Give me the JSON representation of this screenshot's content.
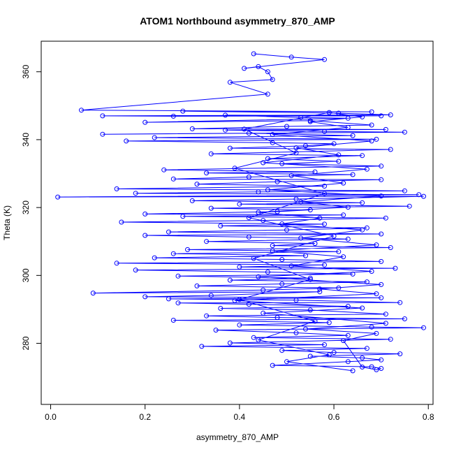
{
  "chart_data": {
    "type": "line",
    "title": "ATOM1 Northbound asymmetry_870_AMP",
    "xlabel": "asymmetry_870_AMP",
    "ylabel": "Theta (K)",
    "xlim": [
      -0.02,
      0.81
    ],
    "ylim": [
      262,
      369
    ],
    "xticks": [
      "0.0",
      "0.2",
      "0.4",
      "0.6",
      "0.8"
    ],
    "yticks": [
      "280",
      "300",
      "320",
      "340",
      "360"
    ],
    "grid": false,
    "series": [
      {
        "color": "#0000ff",
        "marker": "open-circle",
        "points": [
          [
            0.43,
            365.3
          ],
          [
            0.51,
            364.3
          ],
          [
            0.58,
            363.6
          ],
          [
            0.41,
            361.0
          ],
          [
            0.44,
            361.5
          ],
          [
            0.46,
            360.0
          ],
          [
            0.47,
            357.7
          ],
          [
            0.38,
            356.9
          ],
          [
            0.46,
            353.4
          ],
          [
            0.065,
            348.7
          ],
          [
            0.68,
            348.2
          ],
          [
            0.28,
            348.4
          ],
          [
            0.61,
            347.8
          ],
          [
            0.72,
            347.3
          ],
          [
            0.11,
            347.0
          ],
          [
            0.26,
            346.9
          ],
          [
            0.7,
            347.0
          ],
          [
            0.37,
            347.2
          ],
          [
            0.53,
            346.5
          ],
          [
            0.63,
            346.3
          ],
          [
            0.2,
            345.1
          ],
          [
            0.55,
            345.6
          ],
          [
            0.68,
            344.3
          ],
          [
            0.5,
            343.9
          ],
          [
            0.3,
            343.2
          ],
          [
            0.71,
            343.0
          ],
          [
            0.37,
            342.8
          ],
          [
            0.58,
            342.4
          ],
          [
            0.75,
            342.2
          ],
          [
            0.11,
            341.6
          ],
          [
            0.42,
            341.9
          ],
          [
            0.64,
            341.2
          ],
          [
            0.22,
            340.6
          ],
          [
            0.69,
            340.1
          ],
          [
            0.16,
            339.6
          ],
          [
            0.47,
            339.1
          ],
          [
            0.6,
            338.8
          ],
          [
            0.54,
            338.2
          ],
          [
            0.38,
            337.5
          ],
          [
            0.72,
            337.1
          ],
          [
            0.34,
            335.8
          ],
          [
            0.66,
            335.3
          ],
          [
            0.46,
            334.4
          ],
          [
            0.61,
            333.6
          ],
          [
            0.49,
            332.9
          ],
          [
            0.7,
            332.2
          ],
          [
            0.24,
            331.1
          ],
          [
            0.56,
            330.5
          ],
          [
            0.33,
            330.2
          ],
          [
            0.64,
            329.7
          ],
          [
            0.42,
            329.0
          ],
          [
            0.26,
            328.4
          ],
          [
            0.7,
            328.2
          ],
          [
            0.48,
            327.6
          ],
          [
            0.31,
            326.9
          ],
          [
            0.58,
            326.3
          ],
          [
            0.14,
            325.5
          ],
          [
            0.75,
            324.9
          ],
          [
            0.44,
            324.6
          ],
          [
            0.18,
            324.2
          ],
          [
            0.78,
            323.8
          ],
          [
            0.015,
            323.1
          ],
          [
            0.79,
            323.3
          ],
          [
            0.52,
            322.5
          ],
          [
            0.3,
            322.0
          ],
          [
            0.66,
            321.4
          ],
          [
            0.4,
            321.0
          ],
          [
            0.76,
            320.4
          ],
          [
            0.34,
            319.8
          ],
          [
            0.55,
            319.3
          ],
          [
            0.48,
            318.8
          ],
          [
            0.2,
            318.1
          ],
          [
            0.62,
            317.8
          ],
          [
            0.28,
            317.4
          ],
          [
            0.71,
            316.9
          ],
          [
            0.45,
            316.2
          ],
          [
            0.15,
            315.7
          ],
          [
            0.58,
            315.1
          ],
          [
            0.36,
            314.6
          ],
          [
            0.67,
            314.0
          ],
          [
            0.5,
            313.4
          ],
          [
            0.25,
            312.8
          ],
          [
            0.7,
            312.2
          ],
          [
            0.2,
            311.8
          ],
          [
            0.42,
            311.3
          ],
          [
            0.63,
            310.7
          ],
          [
            0.33,
            310.0
          ],
          [
            0.56,
            309.4
          ],
          [
            0.47,
            308.8
          ],
          [
            0.72,
            308.2
          ],
          [
            0.29,
            307.6
          ],
          [
            0.61,
            307.0
          ],
          [
            0.26,
            306.4
          ],
          [
            0.54,
            305.8
          ],
          [
            0.22,
            305.2
          ],
          [
            0.49,
            304.7
          ],
          [
            0.7,
            304.1
          ],
          [
            0.14,
            303.6
          ],
          [
            0.58,
            303.1
          ],
          [
            0.4,
            302.5
          ],
          [
            0.73,
            302.1
          ],
          [
            0.18,
            301.6
          ],
          [
            0.46,
            301.0
          ],
          [
            0.64,
            300.4
          ],
          [
            0.27,
            299.8
          ],
          [
            0.55,
            299.2
          ],
          [
            0.38,
            298.6
          ],
          [
            0.67,
            298.1
          ],
          [
            0.49,
            297.5
          ],
          [
            0.31,
            296.9
          ],
          [
            0.61,
            296.3
          ],
          [
            0.45,
            295.7
          ],
          [
            0.09,
            294.8
          ],
          [
            0.57,
            295.2
          ],
          [
            0.34,
            294.1
          ],
          [
            0.2,
            293.7
          ],
          [
            0.7,
            293.4
          ],
          [
            0.25,
            293.1
          ],
          [
            0.52,
            292.7
          ],
          [
            0.74,
            292.0
          ],
          [
            0.27,
            291.9
          ],
          [
            0.42,
            291.5
          ],
          [
            0.63,
            290.9
          ],
          [
            0.36,
            290.3
          ],
          [
            0.55,
            289.8
          ],
          [
            0.71,
            288.6
          ],
          [
            0.33,
            288.1
          ],
          [
            0.48,
            287.6
          ],
          [
            0.75,
            287.2
          ],
          [
            0.26,
            286.8
          ],
          [
            0.59,
            286.1
          ],
          [
            0.4,
            285.4
          ],
          [
            0.68,
            284.8
          ],
          [
            0.79,
            284.6
          ],
          [
            0.35,
            283.9
          ],
          [
            0.52,
            283.1
          ],
          [
            0.63,
            282.3
          ],
          [
            0.43,
            281.7
          ],
          [
            0.72,
            281.2
          ],
          [
            0.38,
            280.1
          ],
          [
            0.58,
            279.6
          ],
          [
            0.32,
            279.1
          ],
          [
            0.67,
            278.5
          ],
          [
            0.49,
            277.9
          ],
          [
            0.6,
            277.3
          ],
          [
            0.74,
            276.9
          ],
          [
            0.55,
            276.2
          ],
          [
            0.66,
            275.7
          ],
          [
            0.7,
            275.1
          ],
          [
            0.63,
            274.6
          ],
          [
            0.47,
            273.5
          ],
          [
            0.68,
            273.1
          ],
          [
            0.7,
            272.6
          ],
          [
            0.69,
            272.2
          ],
          [
            0.66,
            273.0
          ],
          [
            0.62,
            280.8
          ],
          [
            0.69,
            282.9
          ],
          [
            0.54,
            284.2
          ],
          [
            0.71,
            285.9
          ],
          [
            0.45,
            288.9
          ],
          [
            0.66,
            290.4
          ],
          [
            0.39,
            292.6
          ],
          [
            0.69,
            294.6
          ],
          [
            0.57,
            296.0
          ],
          [
            0.7,
            297.3
          ],
          [
            0.44,
            299.6
          ],
          [
            0.68,
            301.2
          ],
          [
            0.51,
            302.8
          ],
          [
            0.62,
            305.5
          ],
          [
            0.47,
            307.2
          ],
          [
            0.69,
            309.0
          ],
          [
            0.53,
            311.0
          ],
          [
            0.66,
            313.4
          ],
          [
            0.49,
            315.2
          ],
          [
            0.57,
            316.9
          ],
          [
            0.44,
            318.6
          ],
          [
            0.63,
            320.1
          ],
          [
            0.53,
            321.7
          ],
          [
            0.7,
            323.4
          ],
          [
            0.46,
            325.2
          ],
          [
            0.62,
            327.2
          ],
          [
            0.51,
            329.4
          ],
          [
            0.67,
            331.3
          ],
          [
            0.45,
            333.2
          ],
          [
            0.61,
            335.5
          ],
          [
            0.52,
            337.6
          ],
          [
            0.68,
            339.6
          ],
          [
            0.47,
            341.5
          ],
          [
            0.63,
            343.6
          ],
          [
            0.55,
            345.3
          ],
          [
            0.66,
            346.7
          ],
          [
            0.59,
            348.0
          ],
          [
            0.41,
            343.1
          ],
          [
            0.52,
            336.1
          ],
          [
            0.39,
            331.6
          ],
          [
            0.58,
            324.1
          ],
          [
            0.42,
            317.0
          ],
          [
            0.6,
            311.6
          ],
          [
            0.43,
            305.0
          ],
          [
            0.55,
            298.8
          ],
          [
            0.4,
            292.9
          ],
          [
            0.56,
            286.5
          ],
          [
            0.44,
            281.0
          ],
          [
            0.59,
            276.6
          ],
          [
            0.5,
            274.6
          ],
          [
            0.64,
            271.9
          ]
        ]
      }
    ]
  }
}
